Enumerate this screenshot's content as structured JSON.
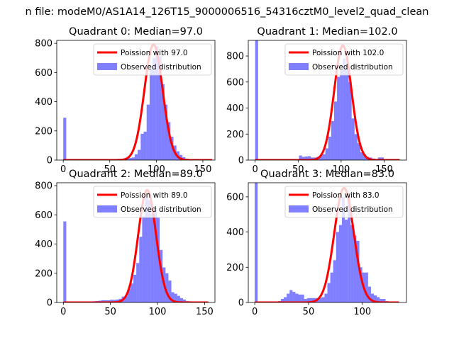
{
  "figure_title": "n file: modeM0/AS1A14_126T15_9000006516_54316cztM0_level2_quad_clean",
  "colors": {
    "hist": "#0000ff",
    "fit": "#ff0000",
    "axis": "#000000",
    "background": "#ffffff"
  },
  "chart_data": [
    {
      "type": "bar",
      "title": "Quadrant 0: Median=97.0",
      "xlabel": "",
      "ylabel": "",
      "xlim": [
        -7,
        163
      ],
      "ylim": [
        0,
        820
      ],
      "xticks": [
        0,
        50,
        100,
        150
      ],
      "yticks": [
        0,
        200,
        400,
        600,
        800
      ],
      "bin_width": 3.2,
      "legend": [
        "Poission with 97.0",
        "Observed distribution"
      ],
      "legend_position": "top-right",
      "hist": [
        [
          0,
          290
        ],
        [
          3.2,
          5
        ],
        [
          6.4,
          4
        ],
        [
          9.6,
          4
        ],
        [
          12.8,
          4
        ],
        [
          16,
          4
        ],
        [
          19.2,
          4
        ],
        [
          22.4,
          4
        ],
        [
          25.6,
          4
        ],
        [
          28.8,
          4
        ],
        [
          32,
          4
        ],
        [
          35.2,
          4
        ],
        [
          38.4,
          4
        ],
        [
          41.6,
          4
        ],
        [
          44.8,
          4
        ],
        [
          48,
          4
        ],
        [
          51.2,
          4
        ],
        [
          54.4,
          4
        ],
        [
          57.6,
          8
        ],
        [
          60.8,
          8
        ],
        [
          64,
          10
        ],
        [
          67.2,
          12
        ],
        [
          70.4,
          14
        ],
        [
          73.6,
          18
        ],
        [
          76.8,
          40
        ],
        [
          80,
          70
        ],
        [
          83.2,
          180
        ],
        [
          86.4,
          195
        ],
        [
          89.6,
          380
        ],
        [
          92.8,
          620
        ],
        [
          96,
          700
        ],
        [
          99.2,
          780
        ],
        [
          102.4,
          710
        ],
        [
          105.6,
          520
        ],
        [
          108.8,
          380
        ],
        [
          112,
          260
        ],
        [
          115.2,
          160
        ],
        [
          118.4,
          100
        ],
        [
          121.6,
          60
        ],
        [
          124.8,
          35
        ],
        [
          128,
          20
        ],
        [
          131.2,
          10
        ],
        [
          134.4,
          6
        ],
        [
          137.6,
          4
        ],
        [
          140.8,
          4
        ],
        [
          144,
          4
        ],
        [
          147.2,
          4
        ],
        [
          150.4,
          4
        ],
        [
          153.6,
          4
        ],
        [
          156.8,
          4
        ]
      ],
      "fit": {
        "mu": 97,
        "sigma": 9.85,
        "peak": 790,
        "x_range": [
          0,
          160
        ]
      }
    },
    {
      "type": "bar",
      "title": "Quadrant 1: Median=102.0",
      "xlabel": "",
      "ylabel": "",
      "xlim": [
        -8,
        176
      ],
      "ylim": [
        0,
        920
      ],
      "xticks": [
        0,
        50,
        100,
        150
      ],
      "yticks": [
        0,
        200,
        400,
        600,
        800
      ],
      "bin_width": 3.4,
      "legend": [
        "Poission with 102.0",
        "Observed distribution"
      ],
      "legend_position": "top-right",
      "hist": [
        [
          0,
          920
        ],
        [
          3.4,
          4
        ],
        [
          6.8,
          4
        ],
        [
          10.2,
          4
        ],
        [
          13.6,
          4
        ],
        [
          17,
          4
        ],
        [
          20.4,
          4
        ],
        [
          23.8,
          4
        ],
        [
          27.2,
          4
        ],
        [
          30.6,
          4
        ],
        [
          34,
          4
        ],
        [
          37.4,
          4
        ],
        [
          40.8,
          4
        ],
        [
          44.2,
          4
        ],
        [
          47.6,
          4
        ],
        [
          51,
          35
        ],
        [
          54.4,
          25
        ],
        [
          57.8,
          28
        ],
        [
          61.2,
          30
        ],
        [
          64.6,
          20
        ],
        [
          68,
          20
        ],
        [
          71.4,
          25
        ],
        [
          74.8,
          35
        ],
        [
          78.2,
          45
        ],
        [
          81.6,
          90
        ],
        [
          85,
          180
        ],
        [
          88.4,
          300
        ],
        [
          91.8,
          450
        ],
        [
          95.2,
          640
        ],
        [
          98.6,
          690
        ],
        [
          102,
          780
        ],
        [
          105.4,
          700
        ],
        [
          108.8,
          600
        ],
        [
          112.2,
          320
        ],
        [
          115.6,
          200
        ],
        [
          119,
          130
        ],
        [
          122.4,
          60
        ],
        [
          125.8,
          45
        ],
        [
          129.2,
          25
        ],
        [
          132.6,
          20
        ],
        [
          136,
          12
        ],
        [
          139.4,
          8
        ],
        [
          142.8,
          20
        ],
        [
          146.2,
          20
        ],
        [
          149.6,
          4
        ],
        [
          153,
          4
        ],
        [
          156.4,
          4
        ],
        [
          159.8,
          4
        ],
        [
          163.2,
          4
        ]
      ],
      "fit": {
        "mu": 102,
        "sigma": 10.1,
        "peak": 880,
        "x_range": [
          0,
          168
        ]
      }
    },
    {
      "type": "bar",
      "title": "Quadrant 2: Median=89.0",
      "xlabel": "",
      "ylabel": "",
      "xlim": [
        -7,
        161
      ],
      "ylim": [
        0,
        820
      ],
      "xticks": [
        0,
        50,
        100,
        150
      ],
      "yticks": [
        0,
        200,
        400,
        600,
        800
      ],
      "bin_width": 3.1,
      "legend": [
        "Poission with 89.0",
        "Observed distribution"
      ],
      "legend_position": "top-right",
      "hist": [
        [
          0,
          555
        ],
        [
          3.1,
          4
        ],
        [
          6.2,
          4
        ],
        [
          9.3,
          4
        ],
        [
          12.4,
          4
        ],
        [
          15.5,
          4
        ],
        [
          18.6,
          4
        ],
        [
          21.7,
          4
        ],
        [
          24.8,
          4
        ],
        [
          27.9,
          6
        ],
        [
          31,
          8
        ],
        [
          34.1,
          10
        ],
        [
          37.2,
          12
        ],
        [
          40.3,
          15
        ],
        [
          43.4,
          15
        ],
        [
          46.5,
          15
        ],
        [
          49.6,
          18
        ],
        [
          52.7,
          18
        ],
        [
          55.8,
          20
        ],
        [
          58.9,
          25
        ],
        [
          62,
          40
        ],
        [
          65.1,
          45
        ],
        [
          68.2,
          90
        ],
        [
          71.3,
          130
        ],
        [
          74.4,
          190
        ],
        [
          77.5,
          270
        ],
        [
          80.6,
          450
        ],
        [
          83.7,
          590
        ],
        [
          86.8,
          720
        ],
        [
          89.9,
          700
        ],
        [
          93,
          610
        ],
        [
          96.1,
          650
        ],
        [
          99.2,
          580
        ],
        [
          102.3,
          360
        ],
        [
          105.4,
          240
        ],
        [
          108.5,
          200
        ],
        [
          111.6,
          150
        ],
        [
          114.7,
          70
        ],
        [
          117.8,
          60
        ],
        [
          120.9,
          45
        ],
        [
          124,
          30
        ],
        [
          127.1,
          20
        ],
        [
          130.2,
          10
        ],
        [
          133.3,
          8
        ],
        [
          136.4,
          6
        ],
        [
          139.5,
          4
        ],
        [
          142.6,
          4
        ],
        [
          145.7,
          4
        ],
        [
          148.8,
          4
        ]
      ],
      "fit": {
        "mu": 89,
        "sigma": 9.45,
        "peak": 770,
        "x_range": [
          0,
          154
        ]
      }
    },
    {
      "type": "bar",
      "title": "Quadrant 3: Median=83.0",
      "xlabel": "",
      "ylabel": "",
      "xlim": [
        -6,
        141
      ],
      "ylim": [
        0,
        680
      ],
      "xticks": [
        0,
        50,
        100
      ],
      "yticks": [
        0,
        200,
        400,
        600
      ],
      "bin_width": 2.7,
      "legend": [
        "Poission with 83.0",
        "Observed distribution"
      ],
      "legend_position": "top-right",
      "hist": [
        [
          0,
          680
        ],
        [
          2.7,
          4
        ],
        [
          5.4,
          4
        ],
        [
          8.1,
          4
        ],
        [
          10.8,
          4
        ],
        [
          13.5,
          4
        ],
        [
          16.2,
          4
        ],
        [
          18.9,
          4
        ],
        [
          21.6,
          8
        ],
        [
          24.3,
          20
        ],
        [
          27,
          30
        ],
        [
          29.7,
          50
        ],
        [
          32.4,
          70
        ],
        [
          35.1,
          60
        ],
        [
          37.8,
          50
        ],
        [
          40.5,
          45
        ],
        [
          43.2,
          45
        ],
        [
          45.9,
          20
        ],
        [
          48.6,
          25
        ],
        [
          51.3,
          25
        ],
        [
          54,
          25
        ],
        [
          56.7,
          25
        ],
        [
          59.4,
          25
        ],
        [
          62.1,
          30
        ],
        [
          64.8,
          50
        ],
        [
          67.5,
          110
        ],
        [
          70.2,
          170
        ],
        [
          72.9,
          240
        ],
        [
          75.6,
          400
        ],
        [
          78.3,
          440
        ],
        [
          81,
          600
        ],
        [
          83.7,
          470
        ],
        [
          86.4,
          600
        ],
        [
          89.1,
          440
        ],
        [
          91.8,
          380
        ],
        [
          94.5,
          350
        ],
        [
          97.2,
          200
        ],
        [
          99.9,
          170
        ],
        [
          102.6,
          170
        ],
        [
          105.3,
          90
        ],
        [
          108,
          50
        ],
        [
          110.7,
          40
        ],
        [
          113.4,
          30
        ],
        [
          116.1,
          20
        ],
        [
          118.8,
          20
        ],
        [
          121.5,
          8
        ],
        [
          124.2,
          6
        ],
        [
          126.9,
          4
        ],
        [
          129.6,
          4
        ]
      ],
      "fit": {
        "mu": 83,
        "sigma": 9.1,
        "peak": 650,
        "x_range": [
          0,
          134
        ]
      }
    }
  ]
}
